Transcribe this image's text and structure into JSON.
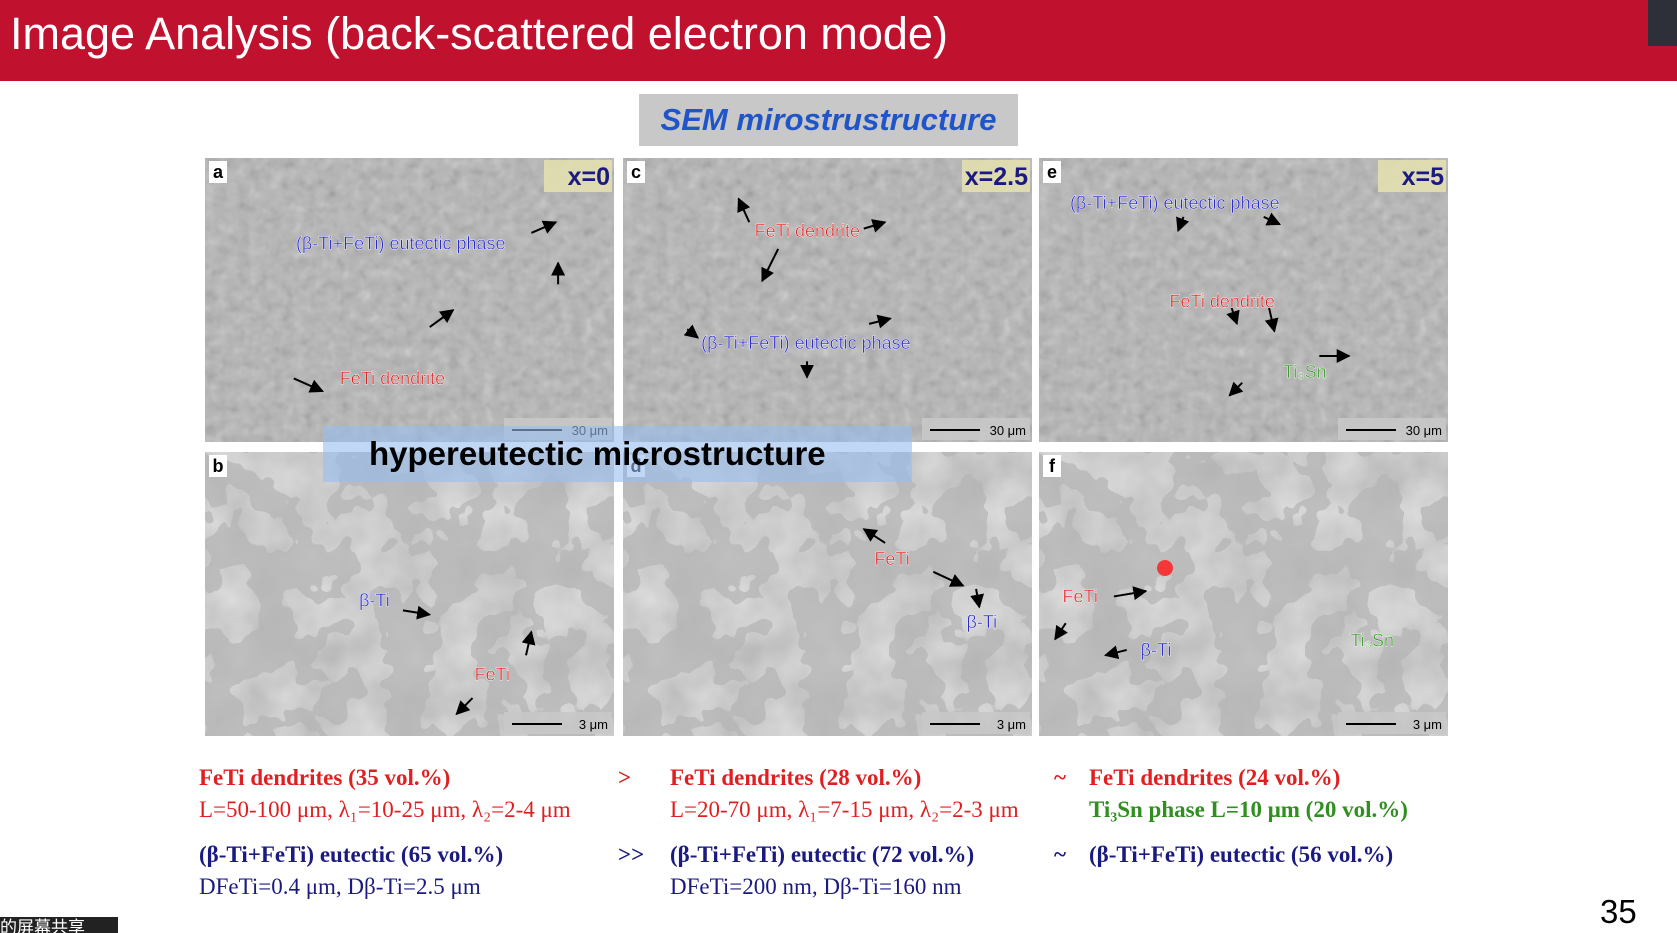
{
  "header": {
    "title": "Image Analysis (back-scattered electron mode)"
  },
  "section_label": "SEM mirostrustructure",
  "overlay_label": "hypereutectic microstructure",
  "panels": [
    {
      "label": "a",
      "composition": "x=0",
      "scale_bar": "30 μm",
      "annotations": [
        {
          "text": "(β-Ti+FeTi) eutectic phase",
          "color": "#2a2ad0"
        },
        {
          "text": "FeTi dendrite",
          "color": "#e02020"
        }
      ]
    },
    {
      "label": "c",
      "composition": "x=2.5",
      "scale_bar": "30 μm",
      "annotations": [
        {
          "text": "FeTi dendrite",
          "color": "#e02020"
        },
        {
          "text": "(β-Ti+FeTi) eutectic phase",
          "color": "#2a2ad0"
        }
      ]
    },
    {
      "label": "e",
      "composition": "x=5",
      "scale_bar": "30 μm",
      "annotations": [
        {
          "text": "(β-Ti+FeTi) eutectic phase",
          "color": "#2a2ad0"
        },
        {
          "text": "FeTi dendrite",
          "color": "#e02020"
        },
        {
          "text": "Ti₃Sn",
          "color": "#3a9a2a"
        }
      ]
    },
    {
      "label": "b",
      "scale_bar": "3 μm",
      "annotations": [
        {
          "text": "β-Ti",
          "color": "#2a2ad0"
        },
        {
          "text": "FeTi",
          "color": "#e02020"
        }
      ]
    },
    {
      "label": "d",
      "scale_bar": "3 μm",
      "annotations": [
        {
          "text": "FeTi",
          "color": "#e02020"
        },
        {
          "text": "β-Ti",
          "color": "#2a2ad0"
        }
      ]
    },
    {
      "label": "f",
      "scale_bar": "3 μm",
      "annotations": [
        {
          "text": "FeTi",
          "color": "#e02020"
        },
        {
          "text": "β-Ti",
          "color": "#2a2ad0"
        },
        {
          "text": "Ti₃Sn",
          "color": "#3a9a2a"
        }
      ]
    }
  ],
  "summary": [
    {
      "text": "FeTi dendrites (35 vol.%)",
      "color": "#e02020",
      "bold": true
    },
    {
      "text": ">",
      "color": "#e02020",
      "bold": true
    },
    {
      "text": "FeTi dendrites (28 vol.%)",
      "color": "#e02020",
      "bold": true
    },
    {
      "text": "~",
      "color": "#e02020",
      "bold": true
    },
    {
      "text": "FeTi dendrites (24 vol.%)",
      "color": "#e02020",
      "bold": true
    },
    {
      "text": "L=50-100 μm, λ₁=10-25 μm, λ₂=2-4 μm",
      "color": "#e02020",
      "bold": false
    },
    {
      "text": "L=20-70 μm, λ₁=7-15 μm, λ₂=2-3 μm",
      "color": "#e02020",
      "bold": false
    },
    {
      "text": "Ti₃Sn phase L=10 μm (20 vol.%)",
      "color": "#2f8f1f",
      "bold": true
    },
    {
      "text": "(β-Ti+FeTi) eutectic (65 vol.%)",
      "color": "#1a1a80",
      "bold": true
    },
    {
      "text": ">>",
      "color": "#1a1a80",
      "bold": true
    },
    {
      "text": "(β-Ti+FeTi) eutectic (72 vol.%)",
      "color": "#1a1a80",
      "bold": true
    },
    {
      "text": "~",
      "color": "#1a1a80",
      "bold": true
    },
    {
      "text": "(β-Ti+FeTi) eutectic (56 vol.%)",
      "color": "#1a1a80",
      "bold": true
    },
    {
      "text": "DFeTi=0.4 μm, Dβ-Ti=2.5 μm",
      "color": "#1a1a80",
      "bold": false
    },
    {
      "text": "DFeTi=200 nm, Dβ-Ti=160 nm",
      "color": "#1a1a80",
      "bold": false
    }
  ],
  "page_number": "35",
  "share_notice": "的屏幕共享"
}
